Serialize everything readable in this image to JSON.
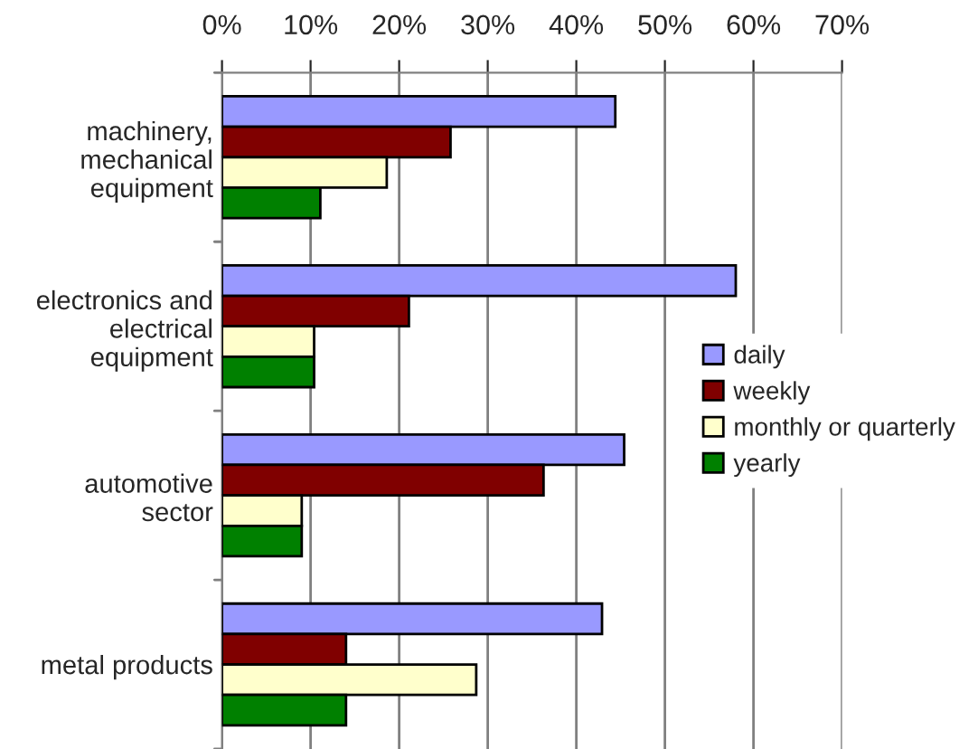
{
  "chart_data": {
    "type": "bar",
    "orientation": "horizontal",
    "categories": [
      "machinery,\nmechanical\nequipment",
      "electronics and\nelectrical\nequipment",
      "automotive\nsector",
      "metal products"
    ],
    "series": [
      {
        "name": "daily",
        "color": "#9999ff",
        "values": [
          44.4,
          58.0,
          45.4,
          42.9
        ]
      },
      {
        "name": "weekly",
        "color": "#800000",
        "values": [
          25.8,
          21.1,
          36.3,
          14.0
        ]
      },
      {
        "name": "monthly or quarterly",
        "color": "#ffffcc",
        "values": [
          18.6,
          10.4,
          9.0,
          28.7
        ]
      },
      {
        "name": "yearly",
        "color": "#008000",
        "values": [
          11.1,
          10.4,
          9.0,
          14.0
        ]
      }
    ],
    "xlim": [
      0,
      70
    ],
    "xticks": [
      {
        "value": 0,
        "label": "0%"
      },
      {
        "value": 10,
        "label": "10%"
      },
      {
        "value": 20,
        "label": "20%"
      },
      {
        "value": 30,
        "label": "30%"
      },
      {
        "value": 40,
        "label": "40%"
      },
      {
        "value": 50,
        "label": "50%"
      },
      {
        "value": 60,
        "label": "60%"
      },
      {
        "value": 70,
        "label": "70%"
      }
    ],
    "grid": "x",
    "legend": "right"
  }
}
